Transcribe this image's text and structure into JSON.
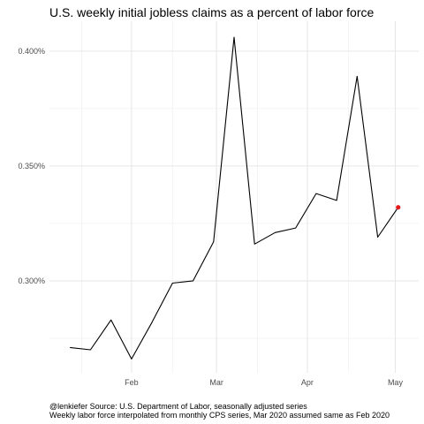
{
  "chart_data": {
    "type": "line",
    "title": "U.S. weekly initial jobless claims as a percent of labor force",
    "xlabel": "",
    "ylabel": "",
    "x_tick_labels": [
      "Feb",
      "Mar",
      "Apr",
      "May"
    ],
    "x_tick_dates": [
      "2020-02-01",
      "2020-03-01",
      "2020-04-01",
      "2020-05-01"
    ],
    "x_minor_dates": [
      "2020-01-15",
      "2020-02-15",
      "2020-03-15",
      "2020-04-15",
      "2020-05-15"
    ],
    "xlim": [
      "2020-01-04",
      "2020-05-09"
    ],
    "y_tick_values": [
      0.3,
      0.35,
      0.4
    ],
    "y_tick_labels": [
      "0.300%",
      "0.350%",
      "0.400%"
    ],
    "y_minor_values": [
      0.275,
      0.325,
      0.375
    ],
    "ylim": [
      0.26,
      0.413
    ],
    "grid": true,
    "legend": "none",
    "line_color": "#000000",
    "highlight_color": "#e41a1c",
    "series": [
      {
        "x": [
          "2020-01-11",
          "2020-01-18",
          "2020-01-25",
          "2020-02-01",
          "2020-02-08",
          "2020-02-15",
          "2020-02-22",
          "2020-02-29",
          "2020-03-07",
          "2020-03-14",
          "2020-03-21",
          "2020-03-28",
          "2020-04-04",
          "2020-04-11",
          "2020-04-18",
          "2020-04-25",
          "2020-05-02"
        ],
        "values": [
          0.271,
          0.27,
          0.283,
          0.266,
          0.282,
          0.299,
          0.3,
          0.317,
          0.406,
          0.316,
          0.321,
          0.323,
          0.338,
          0.335,
          0.389,
          0.319,
          0.332
        ]
      }
    ],
    "highlight_point": {
      "x": "2020-05-02",
      "value": 0.332
    }
  },
  "captions": {
    "line1": "@lenkiefer Source: U.S. Department of Labor, seasonally adjusted series",
    "line2": "Weekly labor force interpolated from monthly CPS series, Mar 2020 assumed same as Feb 2020"
  }
}
